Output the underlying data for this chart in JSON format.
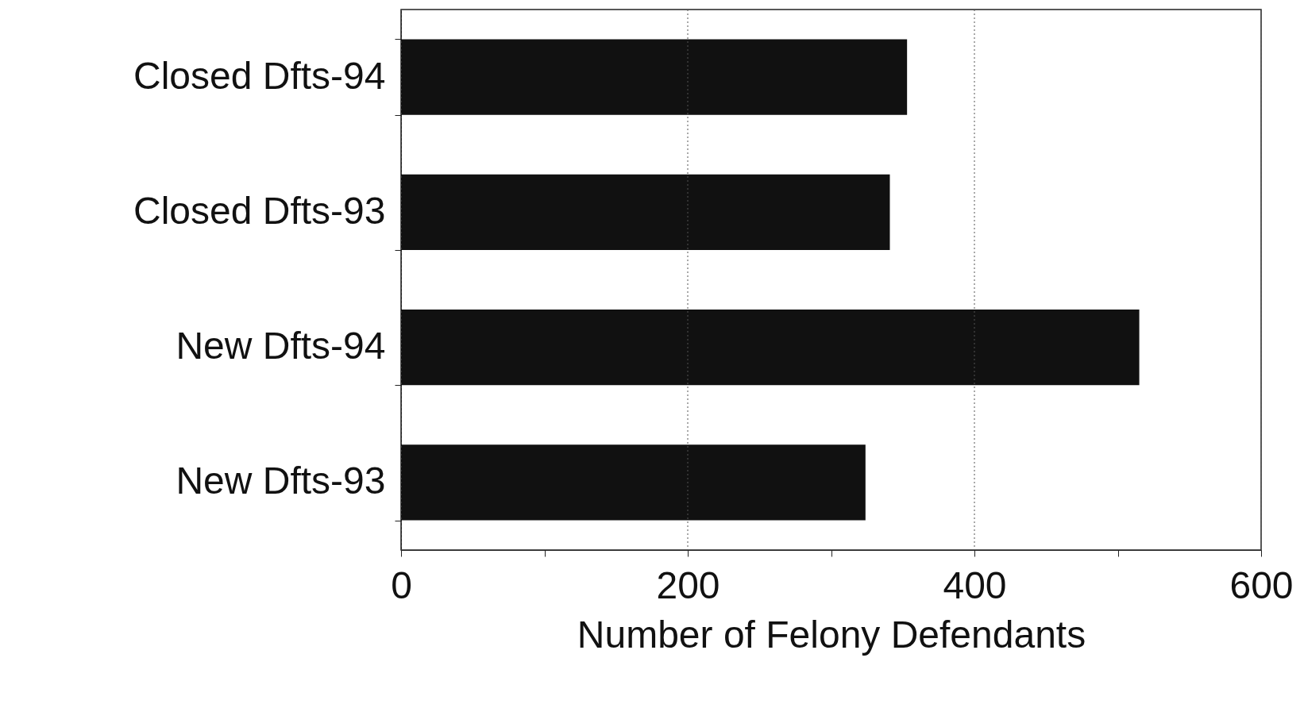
{
  "chart_data": {
    "type": "bar",
    "orientation": "horizontal",
    "xlabel": "Number of Felony Defendants",
    "categories": [
      "Closed Dfts-94",
      "Closed Dfts-93",
      "New Dfts-94",
      "New Dfts-93"
    ],
    "values": [
      353,
      341,
      515,
      324
    ],
    "color": "#111111",
    "xlim": [
      0,
      600
    ],
    "xticks": [
      0,
      {
        "value": 100,
        "label": null
      },
      200,
      {
        "value": 300,
        "label": null
      },
      400,
      {
        "value": 500,
        "label": null
      },
      600
    ],
    "grid": "x"
  }
}
